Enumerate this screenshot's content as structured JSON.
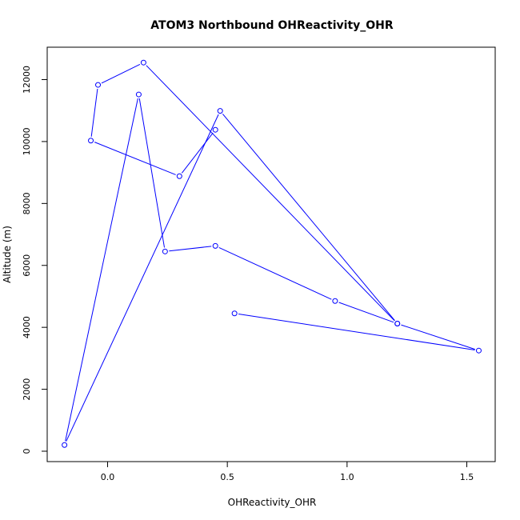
{
  "chart_data": {
    "type": "line",
    "title": "ATOM3 Northbound OHReactivity_OHR",
    "xlabel": "OHReactivity_OHR",
    "ylabel": "Altitude (m)",
    "xlim": [
      -0.2,
      1.6
    ],
    "ylim": [
      -300,
      13000
    ],
    "xticks": [
      0.0,
      0.5,
      1.0,
      1.5
    ],
    "xtick_labels": [
      "0.0",
      "0.5",
      "1.0",
      "1.5"
    ],
    "yticks": [
      0,
      2000,
      4000,
      6000,
      8000,
      10000,
      12000
    ],
    "ytick_labels": [
      "0",
      "2000",
      "4000",
      "6000",
      "8000",
      "10000",
      "12000"
    ],
    "grid": false,
    "markers": "open-circle",
    "series": [
      {
        "color": "#0000ff",
        "x": [
          0.53,
          1.55,
          1.21,
          0.95,
          0.45,
          0.24,
          0.13,
          -0.18,
          0.47,
          1.21,
          0.15,
          -0.04,
          -0.07,
          0.3,
          0.45
        ],
        "y": [
          4450,
          3250,
          4120,
          4850,
          6630,
          6450,
          11520,
          200,
          10990,
          4120,
          12550,
          11830,
          10030,
          8880,
          10380
        ]
      }
    ]
  }
}
